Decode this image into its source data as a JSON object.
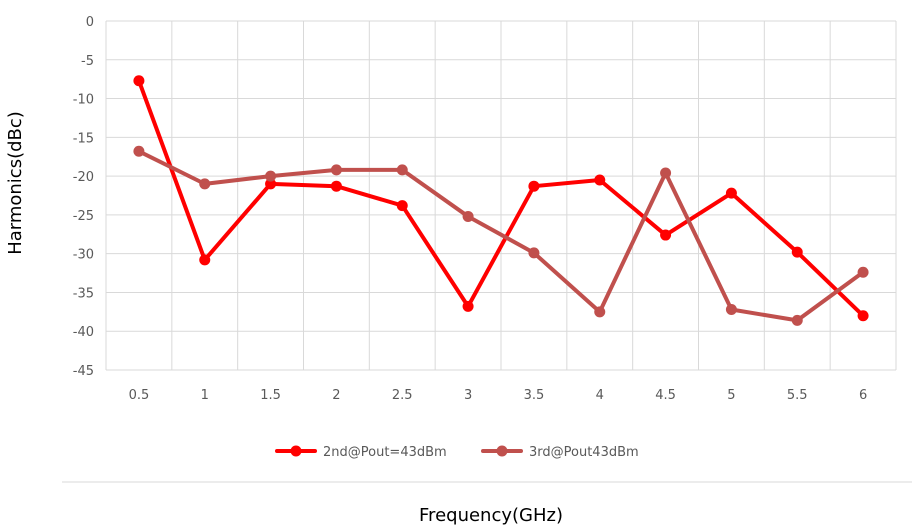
{
  "chart_data": {
    "type": "line",
    "title": "",
    "xlabel": "Frequency(GHz)",
    "ylabel": "Harmonics(dBc)",
    "ylim": [
      -45,
      0
    ],
    "ytick_step": 5,
    "grid": true,
    "legend_position": "bottom",
    "categories": [
      "0.5",
      "1",
      "1.5",
      "2",
      "2.5",
      "3",
      "3.5",
      "4",
      "4.5",
      "5",
      "5.5",
      "6"
    ],
    "series": [
      {
        "name": "2nd@Pout=43dBm",
        "color": "#ff0000",
        "values": [
          -7.7,
          -30.8,
          -21.0,
          -21.3,
          -23.8,
          -36.8,
          -21.3,
          -20.5,
          -27.6,
          -22.2,
          -29.8,
          -38.0
        ]
      },
      {
        "name": "3rd@Pout43dBm",
        "color": "#c0504d",
        "values": [
          -16.8,
          -21.0,
          -20.0,
          -19.2,
          -19.2,
          -25.2,
          -29.9,
          -37.5,
          -19.6,
          -37.2,
          -38.6,
          -32.4
        ]
      }
    ]
  }
}
